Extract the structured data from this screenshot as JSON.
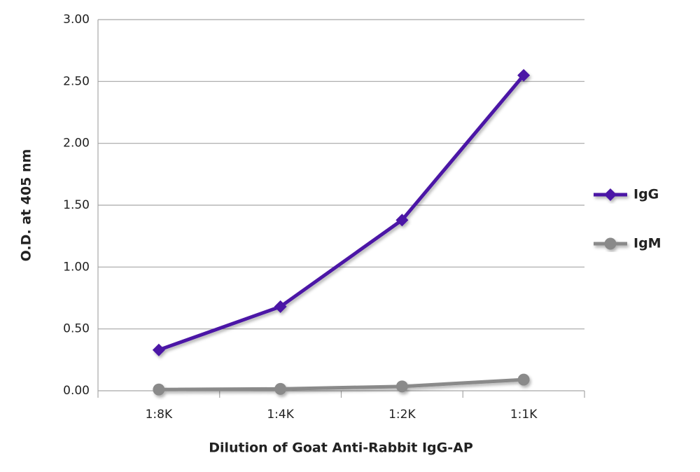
{
  "chart_data": {
    "type": "line",
    "x_label": "Dilution of Goat Anti-Rabbit IgG-AP",
    "y_label": "O.D. at 405 nm",
    "categories": [
      "1:8K",
      "1:4K",
      "1:2K",
      "1:1K"
    ],
    "series": [
      {
        "name": "IgG",
        "color": "#4b14a6",
        "marker": "diamond",
        "values": [
          0.33,
          0.68,
          1.38,
          2.55
        ]
      },
      {
        "name": "IgM",
        "color": "#8a8a8a",
        "marker": "circle",
        "values": [
          0.01,
          0.015,
          0.035,
          0.09
        ]
      }
    ],
    "ylim": [
      0,
      3
    ],
    "yticks": [
      {
        "value": 0,
        "label": "0.00"
      },
      {
        "value": 0.5,
        "label": "0.50"
      },
      {
        "value": 1,
        "label": "1.00"
      },
      {
        "value": 1.5,
        "label": "1.50"
      },
      {
        "value": 2,
        "label": "2.00"
      },
      {
        "value": 2.5,
        "label": "2.50"
      },
      {
        "value": 3,
        "label": "3.00"
      }
    ],
    "grid": true,
    "legend": "right"
  }
}
